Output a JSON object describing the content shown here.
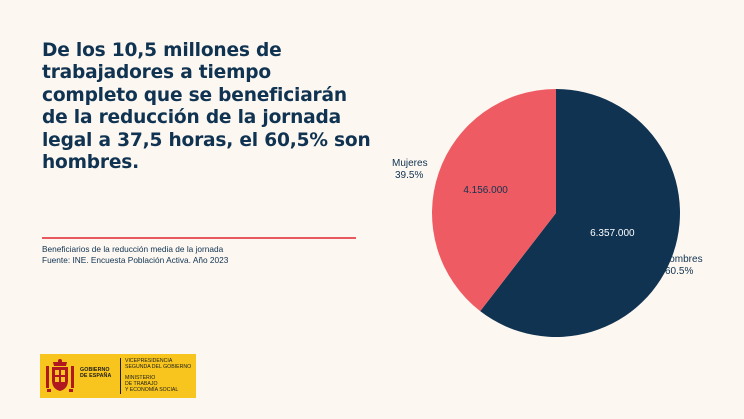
{
  "headline": {
    "line1": "De los 10,5 millones de",
    "line2": "trabajadores a tiempo",
    "line3": "completo que se beneficiarán",
    "line4": "de la reducción de la jornada",
    "line5": "legal a 37,5 horas, el 60,5% son",
    "line6": "hombres."
  },
  "source": {
    "line1": "Beneficiarios de la reducción media de la jornada",
    "line2": "Fuente: INE. Encuesta Población Activa. Año 2023"
  },
  "logo": {
    "gobierno_line1": "GOBIERNO",
    "gobierno_line2": "DE ESPAÑA",
    "vice_line1": "VICEPRESIDENCIA",
    "vice_line2": "SEGUNDA DEL GOBIERNO",
    "min_line1": "MINISTERIO",
    "min_line2": "DE TRABAJO",
    "min_line3": "Y ECONOMÍA SOCIAL"
  },
  "chart_data": {
    "type": "pie",
    "slices": [
      {
        "label": "Hombres",
        "value": 6357000,
        "value_label": "6.357.000",
        "percent_label": "60.5%",
        "color": "#0f3351",
        "value_text_color": "#ffffff"
      },
      {
        "label": "Mujeres",
        "value": 4156000,
        "value_label": "4.156.000",
        "percent_label": "39.5%",
        "color": "#ef5b62",
        "value_text_color": "#0f3351"
      }
    ],
    "start_angle_deg": 0,
    "direction": "clockwise"
  },
  "colors": {
    "background": "#fdf7f1",
    "navy": "#0f3351",
    "coral": "#ef5b62",
    "logo_yellow": "#f7c51e"
  }
}
